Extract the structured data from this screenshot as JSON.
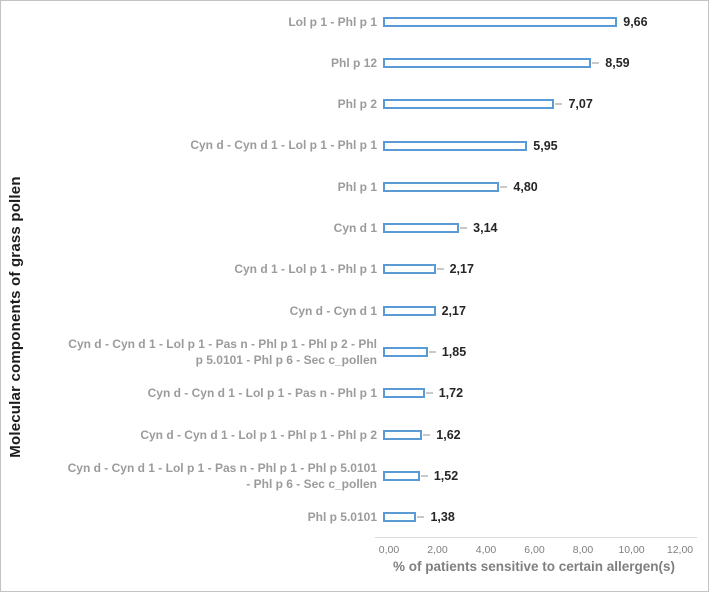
{
  "chart_data": {
    "type": "bar",
    "orientation": "horizontal",
    "title": "",
    "xlabel": "% of patients sensitive to certain allergen(s)",
    "ylabel": "Molecular components of grass pollen",
    "xlim": [
      0,
      12
    ],
    "grid": false,
    "legend": false,
    "bar_fill_color": "#FFFFFF",
    "bar_border_color": "#5B9BD5",
    "categories": [
      "Lol p 1 - Phl p 1",
      "Phl p 12",
      "Phl p 2",
      "Cyn d - Cyn d 1 - Lol p 1 - Phl p 1",
      "Phl p 1",
      "Cyn d 1",
      "Cyn d 1 - Lol p 1 - Phl p 1",
      "Cyn d - Cyn d 1",
      "Cyn d - Cyn d 1 - Lol p 1 - Pas n - Phl p 1 - Phl p 2 - Phl p 5.0101 - Phl p 6 - Sec c_pollen",
      "Cyn d - Cyn d 1 - Lol p 1 - Pas n - Phl p 1",
      "Cyn d - Cyn d 1 - Lol p 1 - Phl p 1 - Phl p 2",
      "Cyn d - Cyn d 1 - Lol p 1 - Pas n - Phl p 1 - Phl p 5.0101 - Phl p 6 - Sec c_pollen",
      "Phl p 5.0101"
    ],
    "values": [
      9.66,
      8.59,
      7.07,
      5.95,
      4.8,
      3.14,
      2.17,
      2.17,
      1.85,
      1.72,
      1.62,
      1.52,
      1.38
    ],
    "value_labels": [
      "9,66",
      "8,59",
      "7,07",
      "5,95",
      "4,80",
      "3,14",
      "2,17",
      "2,17",
      "1,85",
      "1,72",
      "1,62",
      "1,52",
      "1,38"
    ],
    "error_dash": [
      false,
      true,
      true,
      false,
      true,
      true,
      true,
      false,
      true,
      true,
      true,
      true,
      true
    ],
    "x_ticks": [
      0,
      2,
      4,
      6,
      8,
      10,
      12
    ],
    "x_tick_labels": [
      "0,00",
      "2,00",
      "4,00",
      "6,00",
      "8,00",
      "10,00",
      "12,00"
    ]
  }
}
